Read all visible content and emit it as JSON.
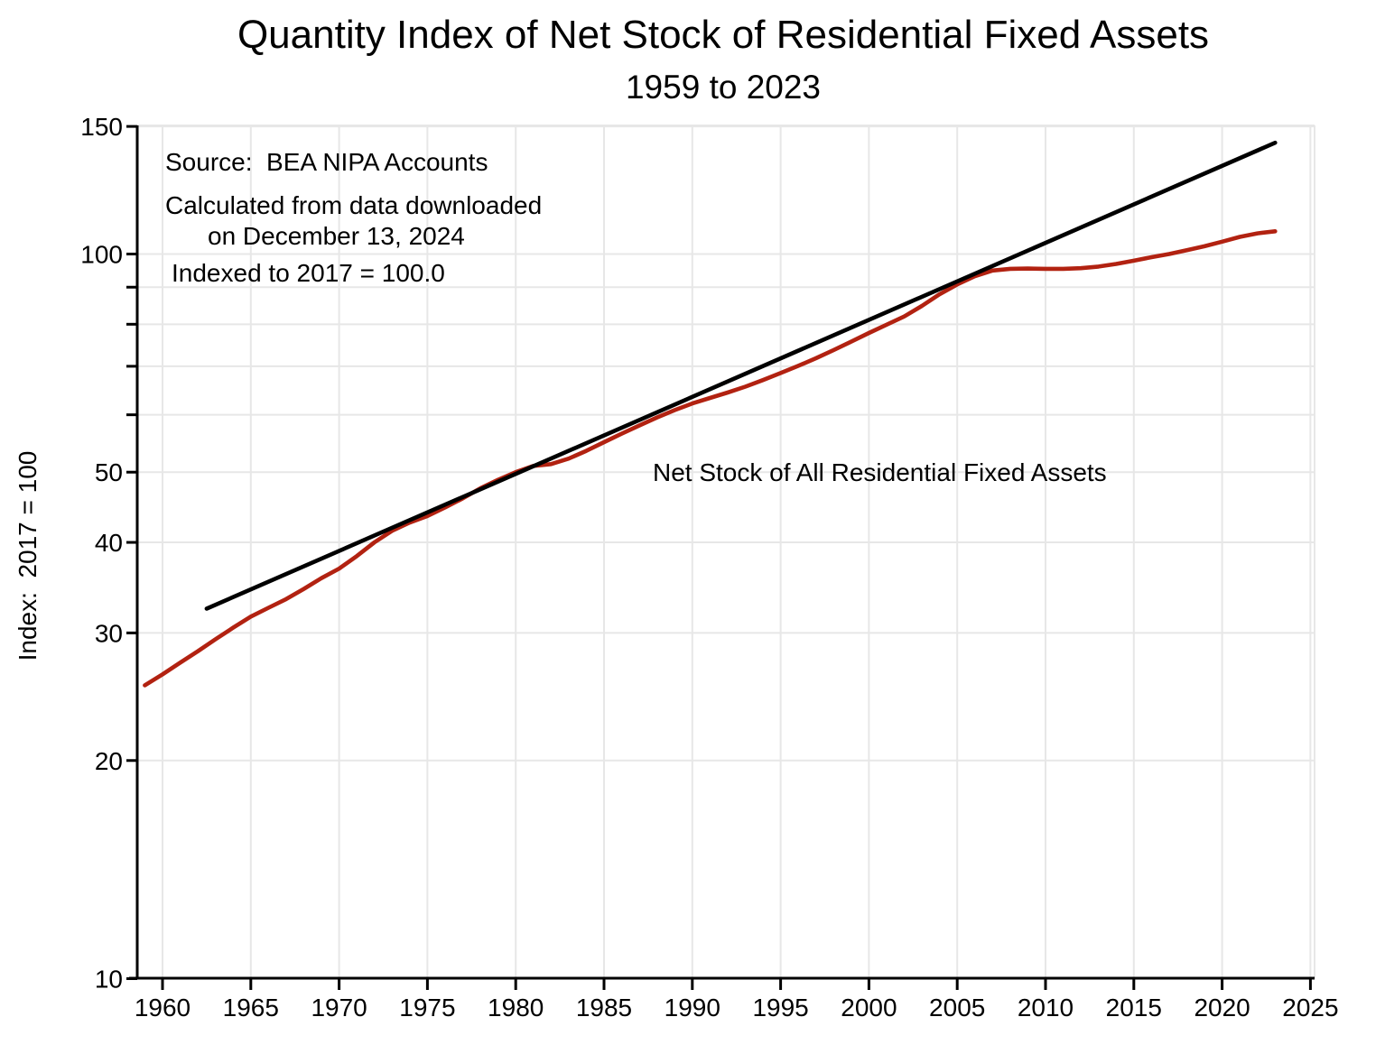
{
  "header": {
    "title": "Quantity Index of Net Stock of Residential Fixed Assets",
    "subtitle": "1959 to 2023"
  },
  "annotations": {
    "source": "Source:  BEA NIPA Accounts",
    "calc_line1": "Calculated from data downloaded",
    "calc_line2": "on December 13, 2024",
    "indexed": "Indexed to 2017 = 100.0"
  },
  "series_label": "Net Stock of All Residential Fixed Assets",
  "y_axis_title": "Index:  2017 = 100",
  "colors": {
    "net_stock_line": "#b22211",
    "trend_line": "#000000",
    "grid": "#e7e7e7",
    "axis": "#000000",
    "background": "#ffffff"
  },
  "chart_data": {
    "type": "line",
    "title": "Quantity Index of Net Stock of Residential Fixed Assets",
    "subtitle": "1959 to 2023",
    "xlabel": "",
    "ylabel": "Index:  2017 = 100",
    "y_scale": "log",
    "ylim": [
      10,
      150.4
    ],
    "xlim": [
      1958.6,
      2025.3
    ],
    "grid": true,
    "x_ticks_labeled": [
      1960,
      1965,
      1970,
      1975,
      1980,
      1985,
      1990,
      1995,
      2000,
      2005,
      2010,
      2015,
      2020,
      2025
    ],
    "y_ticks_labeled": [
      10,
      20,
      30,
      40,
      50,
      100,
      150
    ],
    "y_ticks_unlabeled": [
      60,
      70,
      80,
      90
    ],
    "series": [
      {
        "name": "net-stock-of-all-residential-fixed-assets",
        "label": "Net Stock of All Residential Fixed Assets",
        "color": "#b22211",
        "line_width": 4.6,
        "x": [
          1959,
          1960,
          1961,
          1962,
          1963,
          1964,
          1965,
          1966,
          1967,
          1968,
          1969,
          1970,
          1971,
          1972,
          1973,
          1974,
          1975,
          1976,
          1977,
          1978,
          1979,
          1980,
          1981,
          1982,
          1983,
          1984,
          1985,
          1986,
          1987,
          1988,
          1989,
          1990,
          1991,
          1992,
          1993,
          1994,
          1995,
          1996,
          1997,
          1998,
          1999,
          2000,
          2001,
          2002,
          2003,
          2004,
          2005,
          2006,
          2007,
          2008,
          2009,
          2010,
          2011,
          2012,
          2013,
          2014,
          2015,
          2016,
          2017,
          2018,
          2019,
          2020,
          2021,
          2022,
          2023
        ],
        "y": [
          25.4,
          26.3,
          27.3,
          28.3,
          29.4,
          30.5,
          31.6,
          32.5,
          33.4,
          34.5,
          35.7,
          36.8,
          38.3,
          40.0,
          41.5,
          42.6,
          43.5,
          44.7,
          46.0,
          47.5,
          48.8,
          50.0,
          51.0,
          51.3,
          52.2,
          53.5,
          55.0,
          56.5,
          58.0,
          59.5,
          60.9,
          62.2,
          63.3,
          64.4,
          65.6,
          67.0,
          68.5,
          70.1,
          71.8,
          73.7,
          75.7,
          77.8,
          79.9,
          82.0,
          84.8,
          88.0,
          90.8,
          93.2,
          94.9,
          95.4,
          95.5,
          95.4,
          95.4,
          95.6,
          96.1,
          96.9,
          97.9,
          99.0,
          100.0,
          101.2,
          102.5,
          104.0,
          105.6,
          106.8,
          107.5
        ]
      },
      {
        "name": "trend-line",
        "label": "trend",
        "color": "#000000",
        "line_width": 4.6,
        "x": [
          1962.5,
          2023.0
        ],
        "y": [
          32.4,
          142.4
        ]
      }
    ]
  }
}
